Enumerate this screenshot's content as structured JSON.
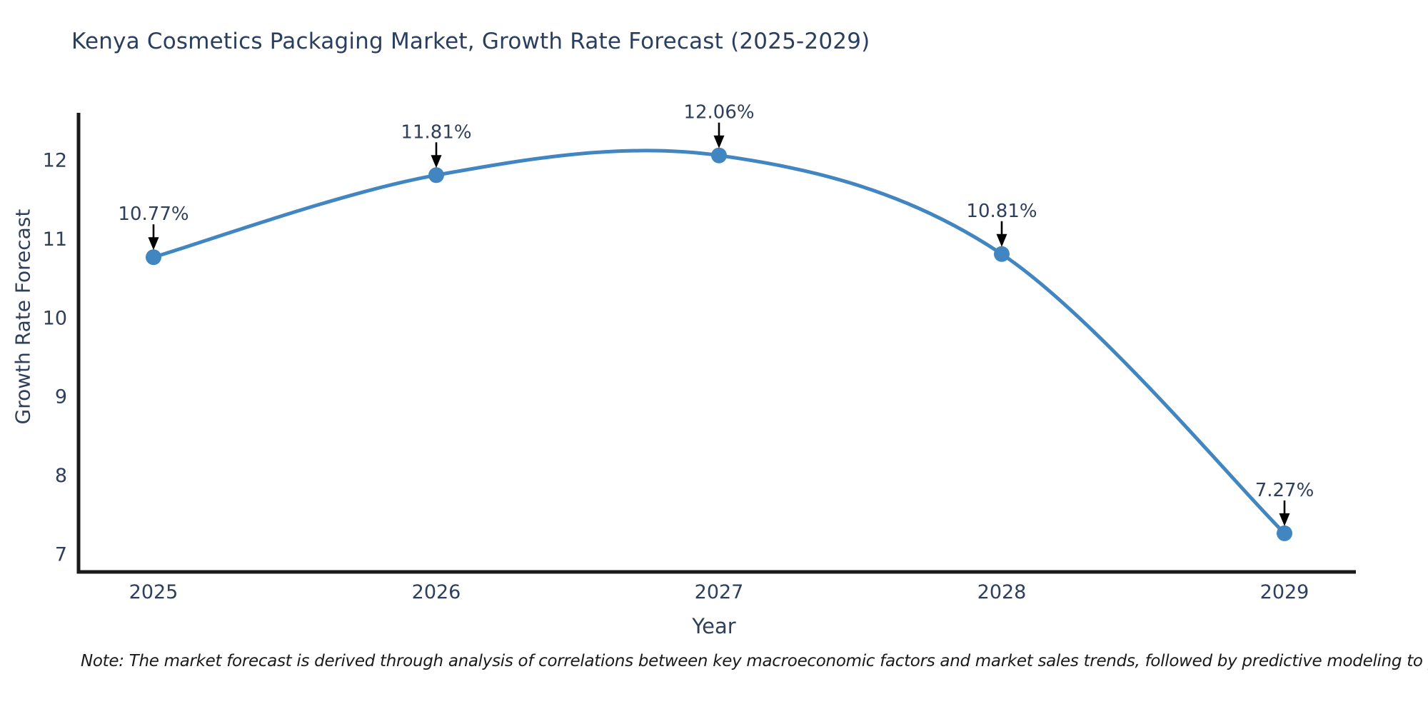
{
  "page": {
    "background": "#ffffff"
  },
  "chart_data": {
    "type": "line",
    "title": "Kenya Cosmetics Packaging Market, Growth Rate Forecast (2025-2029)",
    "xlabel": "Year",
    "ylabel": "Growth Rate Forecast",
    "categories": [
      "2025",
      "2026",
      "2027",
      "2028",
      "2029"
    ],
    "series": [
      {
        "name": "Growth Rate Forecast",
        "values": [
          10.77,
          11.81,
          12.06,
          10.81,
          7.27
        ]
      }
    ],
    "point_labels": [
      "10.77%",
      "11.81%",
      "12.06%",
      "10.81%",
      "7.27%"
    ],
    "y_ticks": [
      7,
      8,
      9,
      10,
      11,
      12
    ],
    "ylim": [
      6.78,
      12.6
    ],
    "grid": false,
    "legend": "none",
    "line_shape": "spline",
    "marker": "circle",
    "annotation_arrows": true,
    "colors": {
      "line": "#4186c0",
      "marker": "#4186c0",
      "axis": "#1a1a1a",
      "text": "#2e3f5c",
      "annotation_arrow": "#000000"
    }
  },
  "note": "Note: The market forecast is derived through analysis of correlations between key macroeconomic factors and market sales trends, followed by predictive modeling to project future sales"
}
